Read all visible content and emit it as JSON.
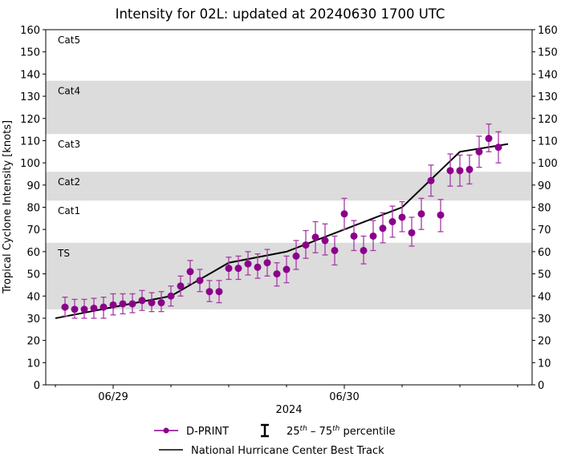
{
  "chart_data": {
    "type": "scatter",
    "title": "Intensity for 02L: updated at 20240630 1700 UTC",
    "xlabel": "2024",
    "ylabel": "Tropical Cyclone Intensity [knots]",
    "xlim": [
      "2024-06-28T17:00",
      "2024-06-30T19:30"
    ],
    "ylim": [
      0,
      160
    ],
    "yticks": [
      0,
      10,
      20,
      30,
      40,
      50,
      60,
      70,
      80,
      90,
      100,
      110,
      120,
      130,
      140,
      150,
      160
    ],
    "xticks": [
      {
        "date": "2024-06-29T00:00",
        "label": "06/29"
      },
      {
        "date": "2024-06-30T00:00",
        "label": "06/30"
      }
    ],
    "grid": false,
    "category_bands": [
      {
        "label": "TS",
        "min": 34,
        "max": 64,
        "shaded": true
      },
      {
        "label": "Cat1",
        "min": 64,
        "max": 83,
        "shaded": false
      },
      {
        "label": "Cat2",
        "min": 83,
        "max": 96,
        "shaded": true
      },
      {
        "label": "Cat3",
        "min": 96,
        "max": 113,
        "shaded": false
      },
      {
        "label": "Cat4",
        "min": 113,
        "max": 137,
        "shaded": true
      },
      {
        "label": "Cat5",
        "min": 137,
        "max": 160,
        "shaded": false
      }
    ],
    "colors": {
      "dprint": "#8b008b",
      "best_track": "#000000",
      "band": "#dcdcdc"
    },
    "legend_placement": "bottom",
    "legend": {
      "dprint": "D-PRINT",
      "errorbar_prefix1": "25",
      "errorbar_sup1": "th",
      "errorbar_mid": " – 75",
      "errorbar_sup2": "th",
      "errorbar_suffix": " percentile",
      "best_track": "National Hurricane Center Best Track"
    },
    "series": [
      {
        "name": "D-PRINT",
        "points": [
          {
            "x": "2024-06-28T19:00",
            "y": 35,
            "low": 31,
            "high": 39.5
          },
          {
            "x": "2024-06-28T20:00",
            "y": 34,
            "low": 30,
            "high": 38.5
          },
          {
            "x": "2024-06-28T21:00",
            "y": 34,
            "low": 30,
            "high": 38.5
          },
          {
            "x": "2024-06-28T22:00",
            "y": 34.5,
            "low": 30,
            "high": 39
          },
          {
            "x": "2024-06-28T23:00",
            "y": 35,
            "low": 30,
            "high": 39.5
          },
          {
            "x": "2024-06-29T00:00",
            "y": 36,
            "low": 31.5,
            "high": 41
          },
          {
            "x": "2024-06-29T01:00",
            "y": 36.5,
            "low": 32,
            "high": 41
          },
          {
            "x": "2024-06-29T02:00",
            "y": 36.5,
            "low": 32.5,
            "high": 41
          },
          {
            "x": "2024-06-29T03:00",
            "y": 38,
            "low": 33.5,
            "high": 42.5
          },
          {
            "x": "2024-06-29T04:00",
            "y": 37,
            "low": 33,
            "high": 41.5
          },
          {
            "x": "2024-06-29T05:00",
            "y": 37,
            "low": 33,
            "high": 42
          },
          {
            "x": "2024-06-29T06:00",
            "y": 40,
            "low": 35.5,
            "high": 44.5
          },
          {
            "x": "2024-06-29T07:00",
            "y": 44.5,
            "low": 40,
            "high": 49
          },
          {
            "x": "2024-06-29T08:00",
            "y": 51,
            "low": 45.5,
            "high": 56
          },
          {
            "x": "2024-06-29T09:00",
            "y": 47,
            "low": 42,
            "high": 52
          },
          {
            "x": "2024-06-29T10:00",
            "y": 42,
            "low": 37.5,
            "high": 47
          },
          {
            "x": "2024-06-29T11:00",
            "y": 42,
            "low": 37,
            "high": 47
          },
          {
            "x": "2024-06-29T12:00",
            "y": 52.5,
            "low": 47.5,
            "high": 57.5
          },
          {
            "x": "2024-06-29T13:00",
            "y": 52.5,
            "low": 47.5,
            "high": 58
          },
          {
            "x": "2024-06-29T14:00",
            "y": 54.5,
            "low": 49.5,
            "high": 60
          },
          {
            "x": "2024-06-29T15:00",
            "y": 53,
            "low": 48,
            "high": 59
          },
          {
            "x": "2024-06-29T16:00",
            "y": 55,
            "low": 49,
            "high": 61
          },
          {
            "x": "2024-06-29T17:00",
            "y": 50,
            "low": 44.5,
            "high": 55
          },
          {
            "x": "2024-06-29T18:00",
            "y": 52,
            "low": 46,
            "high": 58
          },
          {
            "x": "2024-06-29T19:00",
            "y": 58,
            "low": 52,
            "high": 65
          },
          {
            "x": "2024-06-29T20:00",
            "y": 63,
            "low": 57,
            "high": 69.5
          },
          {
            "x": "2024-06-29T21:00",
            "y": 66.5,
            "low": 59.5,
            "high": 73.5
          },
          {
            "x": "2024-06-29T22:00",
            "y": 65,
            "low": 58.5,
            "high": 72.5
          },
          {
            "x": "2024-06-29T23:00",
            "y": 60.5,
            "low": 54,
            "high": 67
          },
          {
            "x": "2024-06-30T00:00",
            "y": 77,
            "low": 70,
            "high": 84
          },
          {
            "x": "2024-06-30T01:00",
            "y": 67,
            "low": 60.5,
            "high": 74
          },
          {
            "x": "2024-06-30T02:00",
            "y": 60.5,
            "low": 54.5,
            "high": 67
          },
          {
            "x": "2024-06-30T03:00",
            "y": 67,
            "low": 60.5,
            "high": 74
          },
          {
            "x": "2024-06-30T04:00",
            "y": 70.5,
            "low": 64,
            "high": 77.5
          },
          {
            "x": "2024-06-30T05:00",
            "y": 73.5,
            "low": 66.5,
            "high": 80.5
          },
          {
            "x": "2024-06-30T06:00",
            "y": 75.5,
            "low": 69,
            "high": 82.5
          },
          {
            "x": "2024-06-30T07:00",
            "y": 68.5,
            "low": 62.5,
            "high": 75.5
          },
          {
            "x": "2024-06-30T08:00",
            "y": 77,
            "low": 70,
            "high": 84
          },
          {
            "x": "2024-06-30T09:00",
            "y": 92,
            "low": 85,
            "high": 99
          },
          {
            "x": "2024-06-30T10:00",
            "y": 76.5,
            "low": 69,
            "high": 83.5
          },
          {
            "x": "2024-06-30T11:00",
            "y": 96.5,
            "low": 89.5,
            "high": 104
          },
          {
            "x": "2024-06-30T12:00",
            "y": 96.5,
            "low": 89.5,
            "high": 103.5
          },
          {
            "x": "2024-06-30T13:00",
            "y": 97,
            "low": 90.5,
            "high": 103.5
          },
          {
            "x": "2024-06-30T14:00",
            "y": 105,
            "low": 98,
            "high": 112
          },
          {
            "x": "2024-06-30T15:00",
            "y": 111,
            "low": 105,
            "high": 117.5
          },
          {
            "x": "2024-06-30T16:00",
            "y": 107,
            "low": 100,
            "high": 114
          }
        ]
      },
      {
        "name": "National Hurricane Center Best Track",
        "points": [
          {
            "x": "2024-06-28T18:00",
            "y": 30
          },
          {
            "x": "2024-06-29T00:00",
            "y": 35
          },
          {
            "x": "2024-06-29T06:00",
            "y": 40
          },
          {
            "x": "2024-06-29T12:00",
            "y": 55
          },
          {
            "x": "2024-06-29T18:00",
            "y": 60
          },
          {
            "x": "2024-06-30T00:00",
            "y": 70
          },
          {
            "x": "2024-06-30T06:00",
            "y": 80
          },
          {
            "x": "2024-06-30T12:00",
            "y": 105
          },
          {
            "x": "2024-06-30T17:00",
            "y": 108.5
          }
        ]
      }
    ]
  }
}
